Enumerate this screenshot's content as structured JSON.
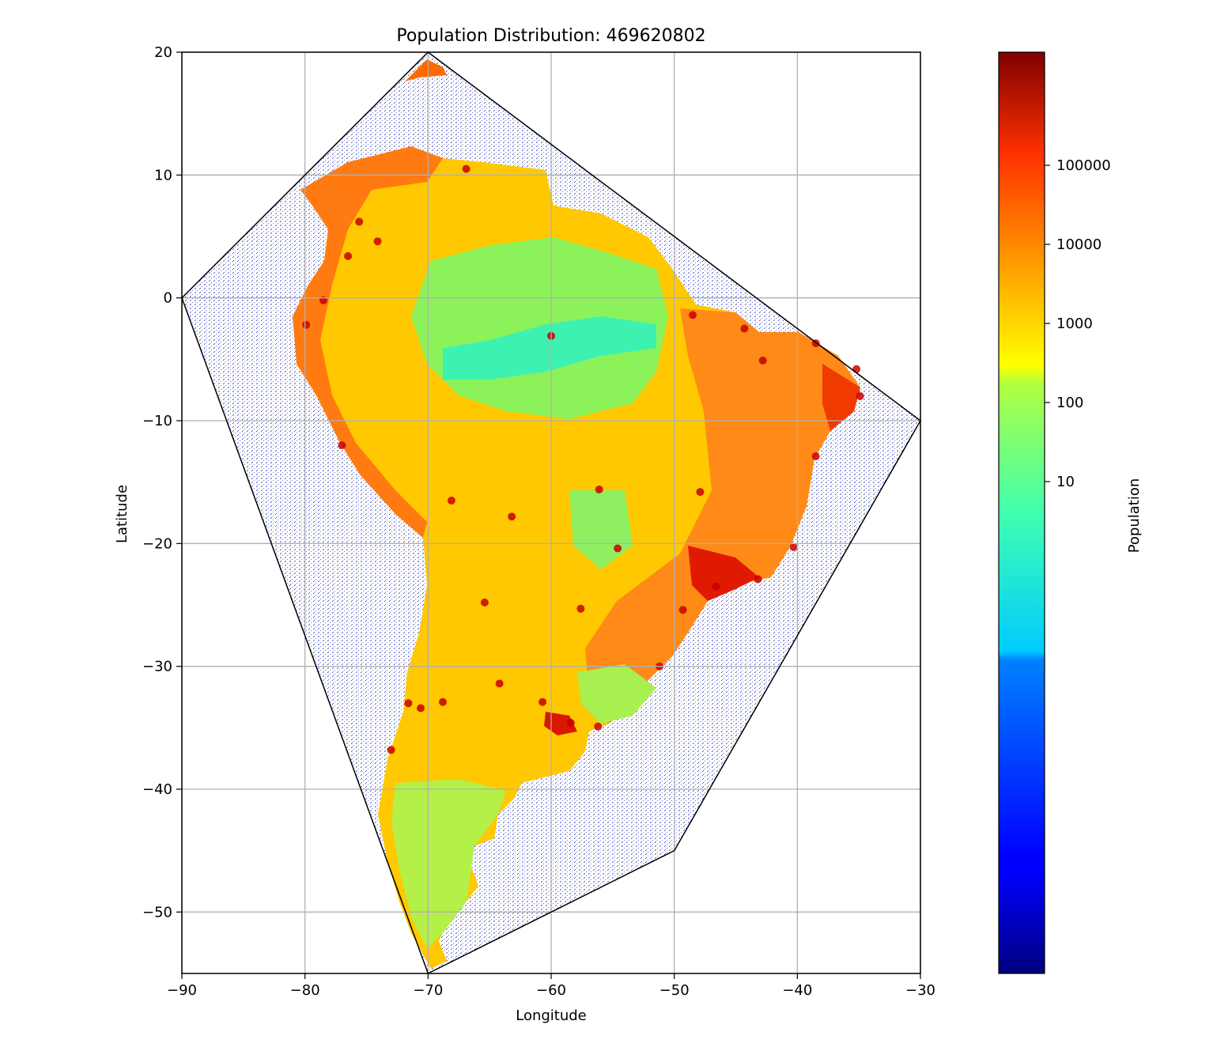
{
  "chart_data": {
    "type": "heatmap",
    "title": "Population Distribution: 469620802",
    "xlabel": "Longitude",
    "ylabel": "Latitude",
    "xlim": [
      -90,
      -30
    ],
    "ylim": [
      -55,
      20
    ],
    "grid": true,
    "x_ticks": [
      -90,
      -80,
      -70,
      -60,
      -50,
      -40,
      -30
    ],
    "x_tick_labels": [
      "−90",
      "−80",
      "−70",
      "−60",
      "−50",
      "−40",
      "−30"
    ],
    "y_ticks": [
      20,
      10,
      0,
      -10,
      -20,
      -30,
      -40,
      -50
    ],
    "y_tick_labels": [
      "20",
      "10",
      "0",
      "−10",
      "−20",
      "−30",
      "−40",
      "−50"
    ],
    "hull": [
      [
        -70,
        20
      ],
      [
        -30,
        -10
      ],
      [
        -50,
        -45
      ],
      [
        -70,
        -55
      ],
      [
        -90,
        0
      ]
    ],
    "colormap": "jet",
    "colorbar": {
      "label": "Population",
      "scale": "log",
      "ticks": [
        100000,
        10000,
        1000,
        100,
        10
      ],
      "tick_labels": [
        "100000",
        "10000",
        "1000",
        "100",
        "10"
      ]
    },
    "region_colors": {
      "low": "#8cf25a",
      "medium": "#ffd200",
      "high": "#ff6a00",
      "very_high": "#d80000",
      "empty_water": "#3a57c8",
      "river_basin": "#3df2b0"
    }
  }
}
